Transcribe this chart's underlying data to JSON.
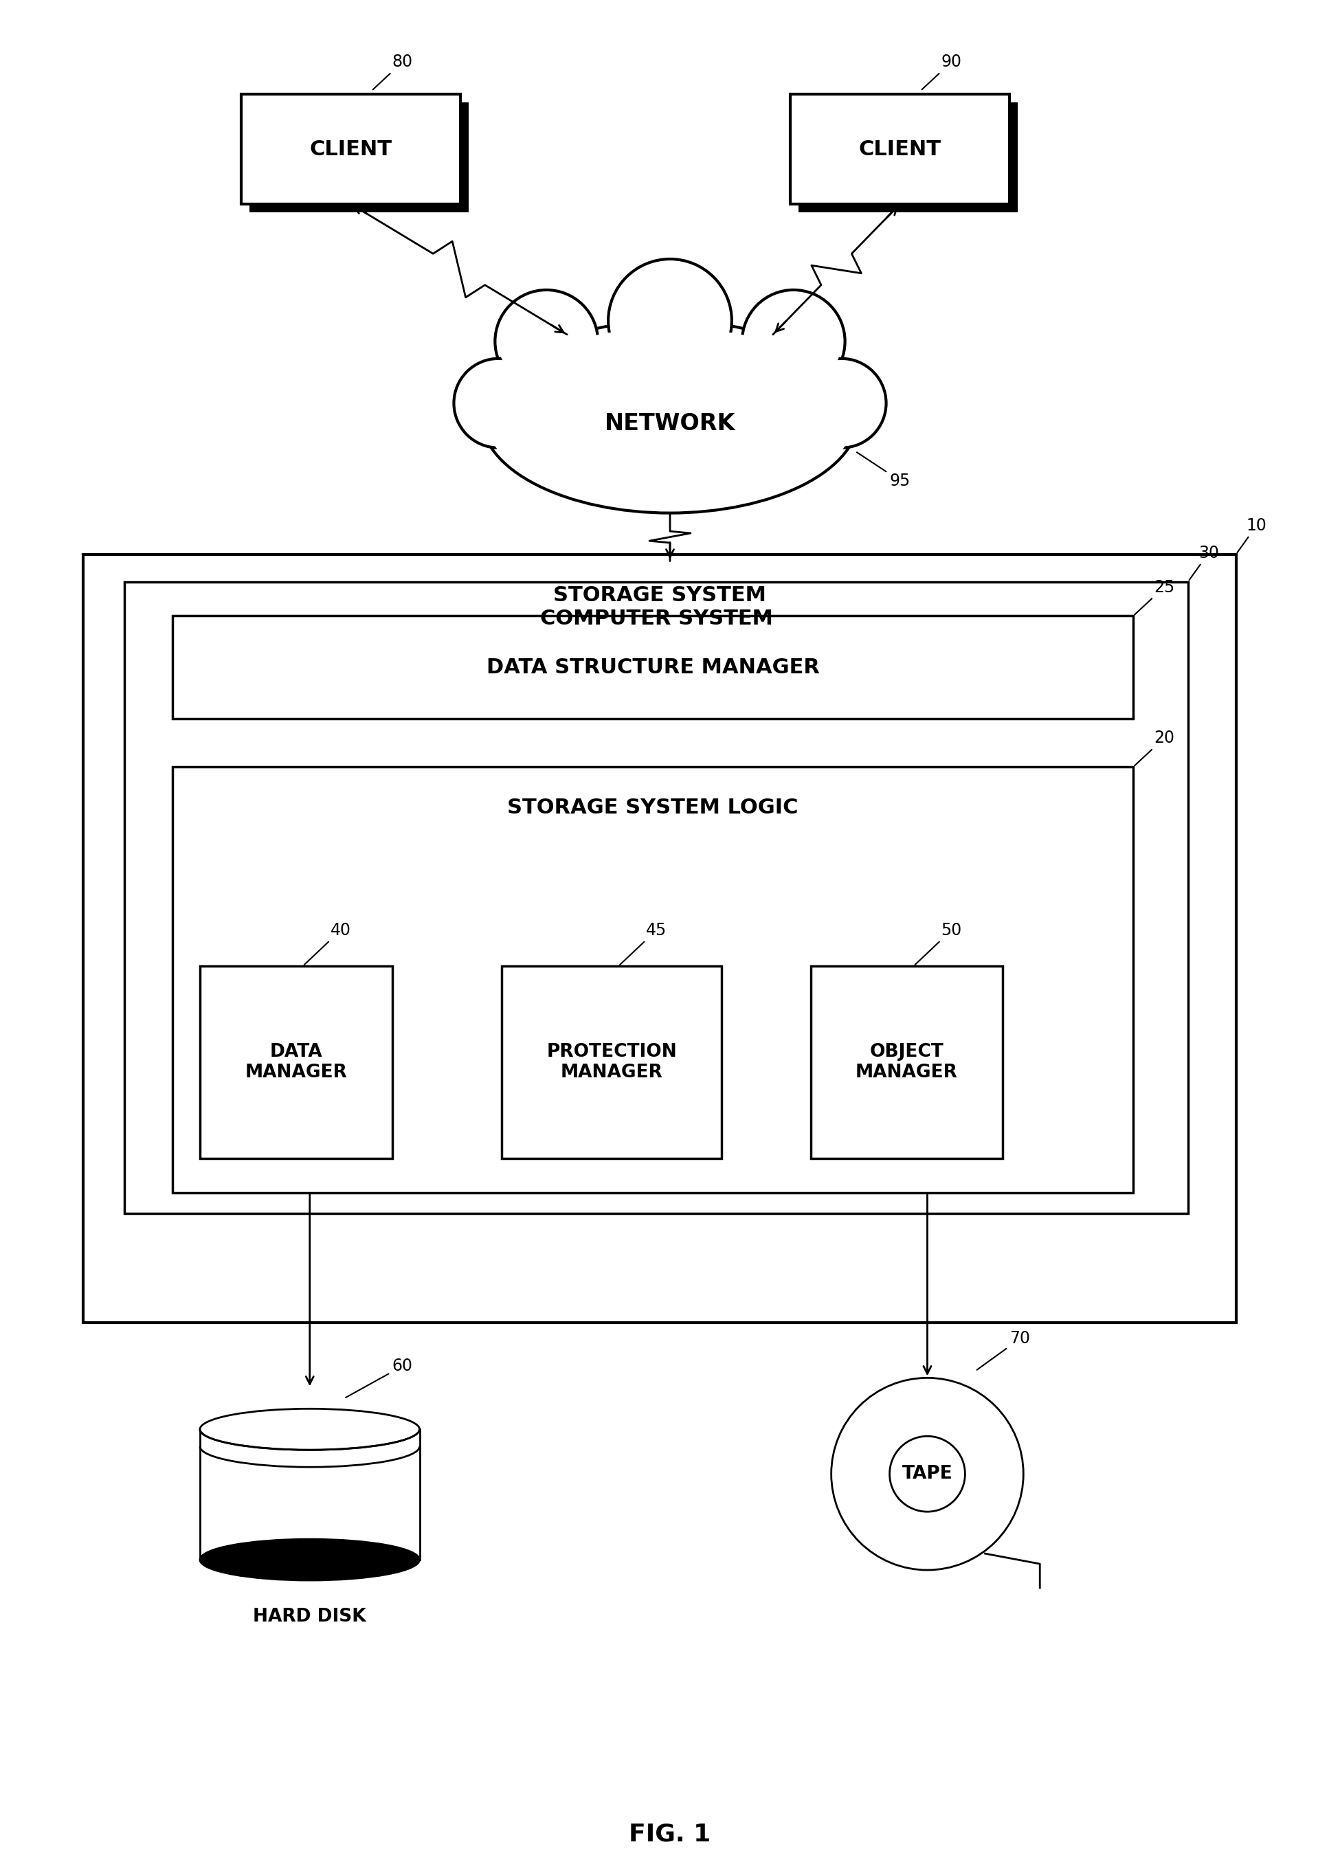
{
  "background_color": "#ffffff",
  "fig_width": 19.5,
  "fig_height": 27.26,
  "title": "FIG. 1",
  "client1_label": "CLIENT",
  "client2_label": "CLIENT",
  "network_label": "NETWORK",
  "storage_system_label": "STORAGE SYSTEM",
  "computer_system_label": "COMPUTER SYSTEM",
  "data_structure_manager_label": "DATA STRUCTURE MANAGER",
  "storage_system_logic_label": "STORAGE SYSTEM LOGIC",
  "data_manager_label": "DATA\nMANAGER",
  "protection_manager_label": "PROTECTION\nMANAGER",
  "object_manager_label": "OBJECT\nMANAGER",
  "hard_disk_label": "HARD DISK",
  "tape_label": "TAPE",
  "ref_80": "80",
  "ref_90": "90",
  "ref_95": "95",
  "ref_10": "10",
  "ref_30": "30",
  "ref_25": "25",
  "ref_20": "20",
  "ref_40": "40",
  "ref_45": "45",
  "ref_50": "50",
  "ref_60": "60",
  "ref_70": "70"
}
